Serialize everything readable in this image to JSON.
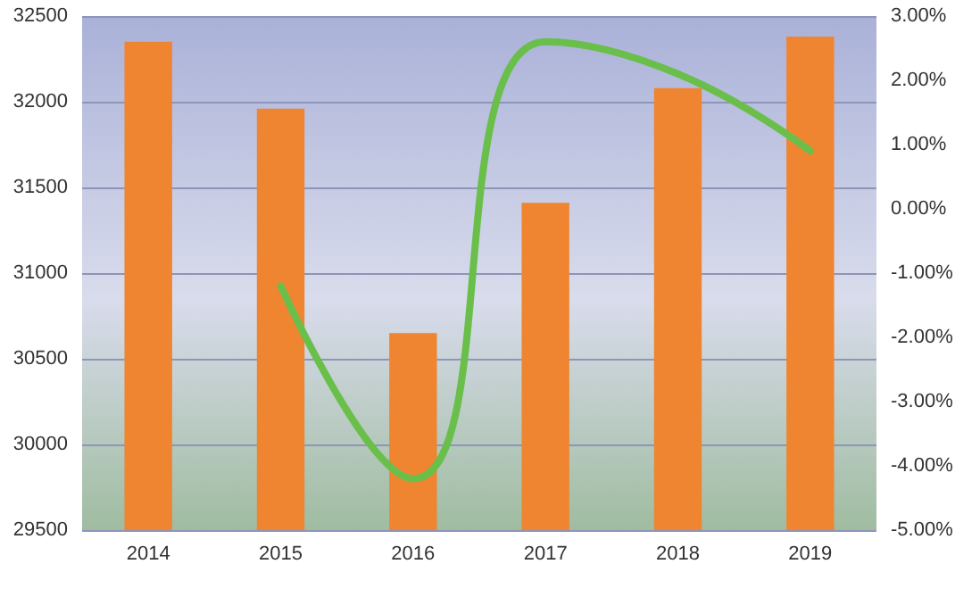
{
  "chart_data": {
    "type": "bar",
    "categories": [
      "2014",
      "2015",
      "2016",
      "2017",
      "2018",
      "2019"
    ],
    "series": [
      {
        "color": "#ef8530",
        "values": [
          32350,
          31960,
          30650,
          31410,
          32080,
          32380
        ]
      },
      {
        "type": "line",
        "axis": "y2",
        "color": "#6abf4b",
        "values": [
          null,
          -1.2,
          -4.2,
          2.6,
          2.1,
          0.9
        ]
      }
    ],
    "ylim": [
      29500,
      32500
    ],
    "yticks": [
      29500,
      30000,
      30500,
      31000,
      31500,
      32000,
      32500
    ],
    "y2lim": [
      -5,
      3
    ],
    "y2ticks": [
      {
        "value": -5,
        "label": "-5.00%"
      },
      {
        "value": -4,
        "label": "-4.00%"
      },
      {
        "value": -3,
        "label": "-3.00%"
      },
      {
        "value": -2,
        "label": "-2.00%"
      },
      {
        "value": -1,
        "label": "-1.00%"
      },
      {
        "value": 0,
        "label": "0.00%"
      },
      {
        "value": 1,
        "label": "1.00%"
      },
      {
        "value": 2,
        "label": "2.00%"
      },
      {
        "value": 3,
        "label": "3.00%"
      }
    ],
    "grid": "y",
    "marker": "none",
    "line_style": "solid"
  }
}
